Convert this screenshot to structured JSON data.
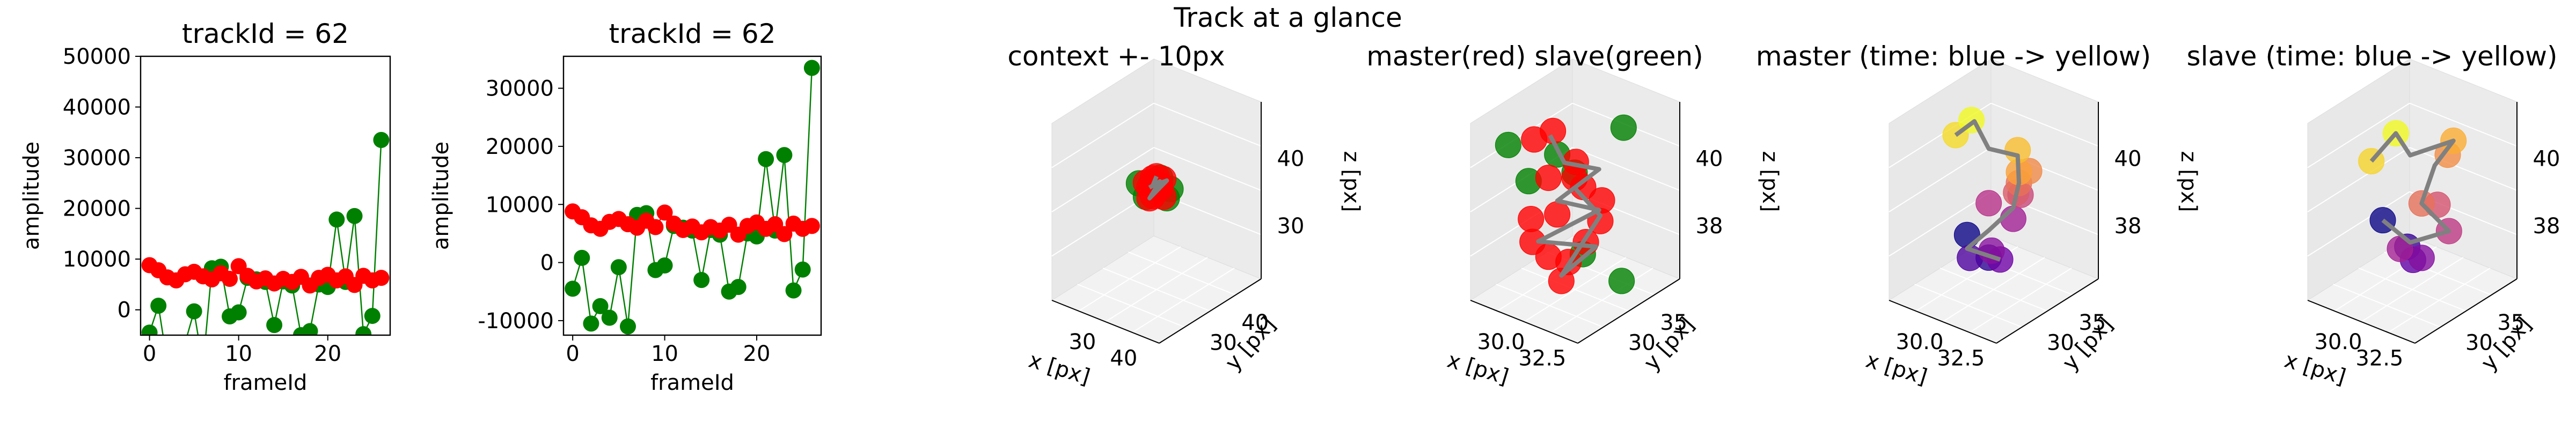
{
  "figure_title": "Track at a glance",
  "colors": {
    "master": "#ff0000",
    "slave": "#008000",
    "track_line": "#808080",
    "pane": "#f2f2f2",
    "time_start": "#0d0887",
    "time_end": "#f0f921"
  },
  "chart_data": [
    {
      "type": "line",
      "title": "trackId = 62",
      "xlabel": "frameId",
      "ylabel": "amplitude",
      "xlim": [
        -1,
        27
      ],
      "ylim": [
        -5000,
        50000
      ],
      "xticks": [
        0,
        10,
        20
      ],
      "yticks": [
        0,
        10000,
        20000,
        30000,
        40000,
        50000
      ],
      "series": [
        {
          "color": "#008000",
          "markers": true,
          "x": [
            0,
            1,
            2,
            3,
            4,
            5,
            6,
            7,
            8,
            9,
            10,
            11,
            12,
            13,
            14,
            15,
            16,
            17,
            18,
            19,
            20,
            21,
            22,
            23,
            24,
            25,
            26
          ],
          "y": [
            -4500,
            800,
            -10500,
            -12000,
            -6500,
            -300,
            -11000,
            8200,
            8500,
            -1300,
            -500,
            6300,
            6000,
            5500,
            -3000,
            5600,
            4800,
            -5000,
            -4200,
            5000,
            4500,
            17800,
            5500,
            18500,
            -4800,
            -1200,
            33500
          ]
        },
        {
          "color": "#ff0000",
          "markers": true,
          "x": [
            0,
            1,
            2,
            3,
            4,
            5,
            6,
            7,
            8,
            9,
            10,
            11,
            12,
            13,
            14,
            15,
            16,
            17,
            18,
            19,
            20,
            21,
            22,
            23,
            24,
            25,
            26
          ],
          "y": [
            8800,
            7800,
            6400,
            5800,
            7000,
            7500,
            6600,
            6000,
            7200,
            6100,
            8600,
            6700,
            5600,
            6200,
            5200,
            6100,
            5500,
            6500,
            4800,
            6300,
            6900,
            5800,
            6600,
            4900,
            6700,
            5800,
            6300
          ]
        }
      ]
    },
    {
      "type": "line",
      "title": "trackId = 62",
      "xlabel": "frameId",
      "ylabel": "amplitude",
      "xlim": [
        -1,
        27
      ],
      "ylim": [
        -12500,
        35500
      ],
      "xticks": [
        0,
        10,
        20
      ],
      "yticks": [
        -10000,
        0,
        10000,
        20000,
        30000
      ],
      "series": [
        {
          "color": "#008000",
          "markers": true,
          "x": [
            0,
            1,
            2,
            3,
            4,
            5,
            6,
            7,
            8,
            9,
            10,
            11,
            12,
            13,
            14,
            15,
            16,
            17,
            18,
            19,
            20,
            21,
            22,
            23,
            24,
            25,
            26
          ],
          "y": [
            -4500,
            800,
            -10500,
            -7500,
            -9500,
            -800,
            -11000,
            8200,
            8500,
            -1300,
            -500,
            6300,
            6000,
            5500,
            -3000,
            5600,
            4800,
            -5000,
            -4200,
            5000,
            4500,
            17800,
            5500,
            18500,
            -4800,
            -1200,
            33500
          ]
        },
        {
          "color": "#ff0000",
          "markers": true,
          "x": [
            0,
            1,
            2,
            3,
            4,
            5,
            6,
            7,
            8,
            9,
            10,
            11,
            12,
            13,
            14,
            15,
            16,
            17,
            18,
            19,
            20,
            21,
            22,
            23,
            24,
            25,
            26
          ],
          "y": [
            8800,
            7800,
            6400,
            5800,
            7000,
            7500,
            6600,
            6000,
            7200,
            6100,
            8600,
            6700,
            5600,
            6200,
            5200,
            6100,
            5500,
            6500,
            4800,
            6300,
            6900,
            5800,
            6600,
            4900,
            6700,
            5800,
            6300
          ]
        }
      ]
    },
    {
      "type": "scatter3d",
      "title": "context +- 10px",
      "xlabel": "x [px]",
      "ylabel": "y [px]",
      "zlabel": "z [px]",
      "xticks": [
        "30",
        "40"
      ],
      "yticks": [
        "30",
        "40"
      ],
      "zticks": [
        "30",
        "40"
      ],
      "layers": [
        {
          "color": "#008000",
          "points": [
            [
              33,
              34,
              38
            ],
            [
              37,
              37,
              39
            ],
            [
              36,
              35,
              41
            ],
            [
              32,
              33,
              40
            ],
            [
              35,
              38,
              37
            ]
          ]
        },
        {
          "color": "#ff0000",
          "points": [
            [
              33,
              35,
              39
            ],
            [
              34,
              35,
              40
            ],
            [
              35,
              36,
              39
            ],
            [
              34,
              34,
              38
            ],
            [
              33,
              36,
              40
            ],
            [
              35,
              35,
              41
            ],
            [
              34,
              37,
              39
            ],
            [
              36,
              36,
              38
            ],
            [
              33,
              34,
              40
            ],
            [
              35,
              37,
              40
            ],
            [
              34,
              35,
              38
            ],
            [
              36,
              35,
              40
            ]
          ]
        }
      ],
      "track": [
        [
          33,
          35,
          39
        ],
        [
          35,
          36,
          40
        ],
        [
          34,
          34,
          38
        ],
        [
          36,
          37,
          40
        ],
        [
          33,
          36,
          39
        ],
        [
          35,
          35,
          41
        ]
      ]
    },
    {
      "type": "scatter3d",
      "title": "master(red) slave(green)",
      "xlabel": "x [px]",
      "ylabel": "y [px]",
      "zlabel": "z [px]",
      "xticks": [
        "30.0",
        "32.5"
      ],
      "yticks": [
        "30",
        "35"
      ],
      "zticks": [
        "38",
        "40"
      ],
      "layers": [
        {
          "color": "#008000",
          "points": [
            [
              28.5,
              31,
              40.6
            ],
            [
              33,
              36,
              41
            ],
            [
              31,
              34,
              39.4
            ],
            [
              28.5,
              33,
              38.8
            ],
            [
              35,
              33,
              36.5
            ],
            [
              30.5,
              33,
              40.2
            ],
            [
              33,
              32,
              37.3
            ]
          ]
        },
        {
          "color": "#ff0000",
          "points": [
            [
              29.6,
              32,
              40.8
            ],
            [
              30.2,
              33,
              41
            ],
            [
              30.6,
              32,
              39.6
            ],
            [
              31,
              34,
              39.2
            ],
            [
              30.5,
              33,
              38
            ],
            [
              31.6,
              34,
              39
            ],
            [
              32.2,
              35,
              38.4
            ],
            [
              32.8,
              34,
              38
            ],
            [
              30.2,
              31,
              37.4
            ],
            [
              30.6,
              32,
              36.7
            ],
            [
              31.5,
              32,
              36
            ],
            [
              32.5,
              33,
              37.4
            ],
            [
              32,
              32,
              36.8
            ],
            [
              30.8,
              30,
              38.6
            ],
            [
              31.8,
              33,
              40.2
            ]
          ]
        }
      ],
      "track": [
        [
          30,
          33,
          40.8
        ],
        [
          31,
          33,
          40
        ],
        [
          32,
          35,
          39.5
        ],
        [
          30.5,
          33,
          38.5
        ],
        [
          32,
          35,
          38
        ],
        [
          30.6,
          31,
          37.5
        ],
        [
          32.5,
          34,
          37
        ],
        [
          31.5,
          32,
          36.2
        ],
        [
          32.8,
          34,
          38.2
        ],
        [
          31.8,
          33,
          39.2
        ]
      ]
    },
    {
      "type": "scatter3d",
      "title": "master (time: blue -> yellow)",
      "xlabel": "x [px]",
      "ylabel": "y [px]",
      "zlabel": "z [px]",
      "xticks": [
        "30.0",
        "32.5"
      ],
      "yticks": [
        "30",
        "35"
      ],
      "zticks": [
        "38",
        "40"
      ],
      "colormap": "plasma",
      "layers": [
        {
          "color_by_time": true,
          "points": [
            [
              30.6,
              32,
              37.5
            ],
            [
              31.4,
              33,
              36.6
            ],
            [
              30.8,
              32,
              36.7
            ],
            [
              32.2,
              33,
              36.7
            ],
            [
              31.6,
              33,
              36.9
            ],
            [
              32.4,
              34,
              38
            ],
            [
              31.4,
              33,
              38.6
            ],
            [
              32.2,
              35,
              38.6
            ],
            [
              32.6,
              34,
              39
            ],
            [
              32.8,
              34,
              39.4
            ],
            [
              32.8,
              35,
              39.6
            ],
            [
              32.8,
              34,
              39.8
            ],
            [
              32,
              35,
              40.2
            ],
            [
              29.8,
              32,
              41
            ],
            [
              30.2,
              33,
              41.4
            ]
          ]
        }
      ],
      "track": [
        [
          29.8,
          32,
          41
        ],
        [
          30.4,
          33,
          41.4
        ],
        [
          31.4,
          33,
          40.6
        ],
        [
          32,
          35,
          40
        ],
        [
          32.8,
          34,
          39.4
        ],
        [
          32.4,
          34,
          38.4
        ],
        [
          31.4,
          33,
          37.6
        ],
        [
          30.6,
          32,
          37
        ],
        [
          32.2,
          33,
          36.7
        ]
      ]
    },
    {
      "type": "scatter3d",
      "title": "slave (time: blue -> yellow)",
      "xlabel": "x [px]",
      "ylabel": "y [px]",
      "zlabel": "z [px]",
      "xticks": [
        "30.0",
        "32.5"
      ],
      "yticks": [
        "30",
        "35"
      ],
      "zticks": [
        "38",
        "40"
      ],
      "colormap": "plasma",
      "layers": [
        {
          "color_by_time": true,
          "points": [
            [
              30.4,
              32,
              38
            ],
            [
              31.4,
              33,
              37
            ],
            [
              31.8,
              33,
              36.6
            ],
            [
              32.4,
              33,
              36.8
            ],
            [
              31.6,
              32,
              37.2
            ],
            [
              33.6,
              34,
              37.8
            ],
            [
              32.8,
              34,
              38.6
            ],
            [
              32.4,
              33,
              38.8
            ],
            [
              32.8,
              35,
              40.2
            ],
            [
              33.2,
              35,
              40.8
            ],
            [
              29.6,
              32,
              40
            ],
            [
              30.6,
              33,
              41
            ]
          ]
        }
      ],
      "track": [
        [
          29.6,
          32,
          40
        ],
        [
          30.6,
          33,
          41
        ],
        [
          31.6,
          33,
          40.4
        ],
        [
          33.2,
          35,
          40.8
        ],
        [
          32.6,
          34,
          40
        ],
        [
          32.4,
          33,
          38.8
        ],
        [
          33.6,
          34,
          37.8
        ],
        [
          31.6,
          33,
          37.2
        ],
        [
          30.4,
          32,
          38
        ]
      ]
    }
  ]
}
